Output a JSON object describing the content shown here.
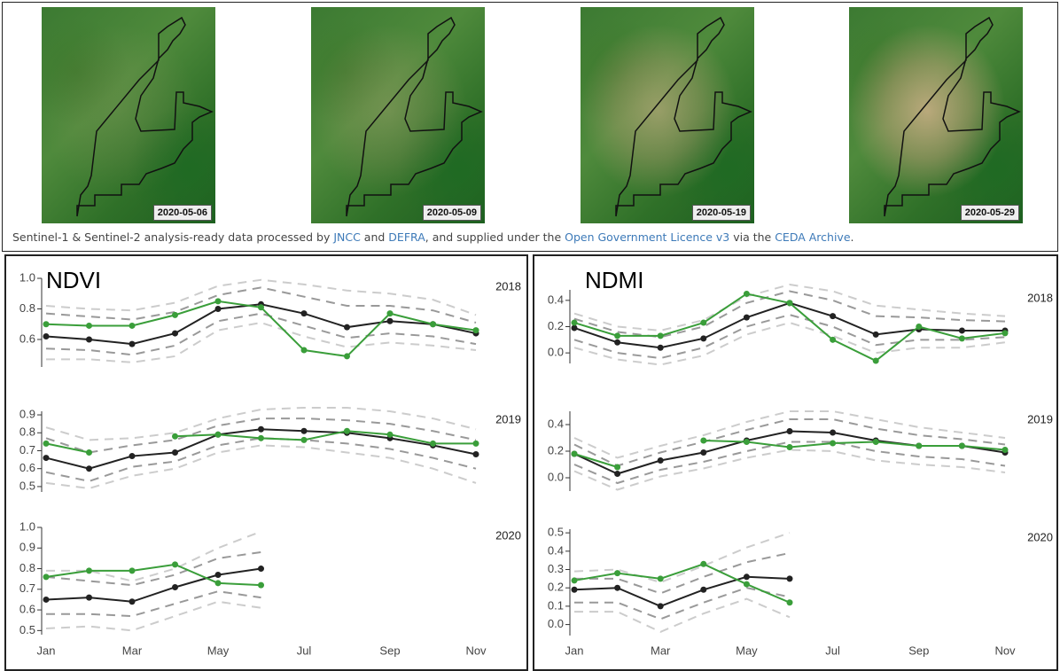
{
  "images": {
    "dates": [
      "2020-05-06",
      "2020-05-09",
      "2020-05-19",
      "2020-05-29"
    ]
  },
  "caption": [
    "Sentinel-1 & Sentinel-2 analysis-ready data processed by ",
    "JNCC",
    " and ",
    "DEFRA",
    ", and supplied under the ",
    "Open Government Licence v3",
    " via the ",
    "CEDA Archive",
    "."
  ],
  "chart_data": [
    {
      "type": "line",
      "title": "NDVI",
      "categories": [
        "Jan",
        null,
        "Mar",
        null,
        "May",
        null,
        "Jul",
        null,
        "Sep",
        null,
        "Nov"
      ],
      "subplots": [
        {
          "label": "2018",
          "ylim": [
            0.42,
            1.0
          ],
          "yticks": [
            0.6,
            0.8,
            {
              "value": 1,
              "label": "1.0"
            }
          ],
          "series": [
            {
              "color": "#cccccc",
              "dash": true,
              "values": [
                0.82,
                0.8,
                0.79,
                0.84,
                0.95,
                0.99,
                0.96,
                0.92,
                0.9,
                0.86,
                0.76
              ]
            },
            {
              "color": "#999999",
              "dash": true,
              "values": [
                0.77,
                0.75,
                0.73,
                0.78,
                0.89,
                0.94,
                0.88,
                0.82,
                0.82,
                0.79,
                0.71
              ]
            },
            {
              "color": "#999999",
              "dash": true,
              "values": [
                0.54,
                0.53,
                0.5,
                0.56,
                0.72,
                0.77,
                0.69,
                0.61,
                0.64,
                0.62,
                0.57
              ]
            },
            {
              "color": "#cccccc",
              "dash": true,
              "values": [
                0.47,
                0.47,
                0.45,
                0.49,
                0.66,
                0.71,
                0.62,
                0.55,
                0.58,
                0.56,
                0.53
              ]
            },
            {
              "color": "#222222",
              "values": [
                0.62,
                0.6,
                0.57,
                0.64,
                0.8,
                0.83,
                0.77,
                0.68,
                0.72,
                0.7,
                0.64
              ]
            },
            {
              "color": "#3a9e3a",
              "values": [
                0.7,
                0.69,
                0.69,
                0.76,
                0.85,
                0.81,
                0.53,
                0.49,
                0.77,
                0.7,
                0.66
              ]
            }
          ]
        },
        {
          "label": "2019",
          "ylim": [
            0.47,
            0.92
          ],
          "yticks": [
            0.5,
            0.6,
            0.7,
            0.8,
            0.9
          ],
          "series": [
            {
              "color": "#cccccc",
              "dash": true,
              "values": [
                0.83,
                0.76,
                0.77,
                0.8,
                0.88,
                0.93,
                0.94,
                0.94,
                0.92,
                0.88,
                0.82
              ]
            },
            {
              "color": "#999999",
              "dash": true,
              "values": [
                0.77,
                0.69,
                0.73,
                0.76,
                0.84,
                0.88,
                0.88,
                0.87,
                0.85,
                0.81,
                0.76
              ]
            },
            {
              "color": "#999999",
              "dash": true,
              "values": [
                0.58,
                0.53,
                0.61,
                0.64,
                0.73,
                0.77,
                0.76,
                0.74,
                0.71,
                0.66,
                0.6
              ]
            },
            {
              "color": "#cccccc",
              "dash": true,
              "values": [
                0.52,
                0.49,
                0.56,
                0.6,
                0.69,
                0.73,
                0.72,
                0.69,
                0.66,
                0.6,
                0.52
              ]
            },
            {
              "color": "#222222",
              "values": [
                0.66,
                0.6,
                0.67,
                0.69,
                0.79,
                0.82,
                0.81,
                0.8,
                0.77,
                0.73,
                0.68
              ]
            },
            {
              "color": "#3a9e3a",
              "values": [
                0.74,
                0.69,
                null,
                0.78,
                0.79,
                0.77,
                0.76,
                0.81,
                0.79,
                0.74,
                0.74
              ]
            }
          ]
        },
        {
          "label": "2020",
          "ylim": [
            0.48,
            1.0
          ],
          "yticks": [
            0.5,
            0.6,
            0.7,
            0.8,
            0.9,
            {
              "value": 1,
              "label": "1.0"
            }
          ],
          "series": [
            {
              "color": "#cccccc",
              "dash": true,
              "values": [
                0.79,
                0.79,
                0.74,
                0.8,
                0.9,
                0.98,
                null,
                null,
                null,
                null,
                null
              ]
            },
            {
              "color": "#999999",
              "dash": true,
              "values": [
                0.76,
                0.74,
                0.72,
                0.77,
                0.85,
                0.88,
                null,
                null,
                null,
                null,
                null
              ]
            },
            {
              "color": "#999999",
              "dash": true,
              "values": [
                0.58,
                0.58,
                0.57,
                0.63,
                0.69,
                0.66,
                null,
                null,
                null,
                null,
                null
              ]
            },
            {
              "color": "#cccccc",
              "dash": true,
              "values": [
                0.51,
                0.52,
                0.5,
                0.57,
                0.64,
                0.61,
                null,
                null,
                null,
                null,
                null
              ]
            },
            {
              "color": "#222222",
              "values": [
                0.65,
                0.66,
                0.64,
                0.71,
                0.77,
                0.8,
                null,
                null,
                null,
                null,
                null
              ]
            },
            {
              "color": "#3a9e3a",
              "values": [
                0.76,
                0.79,
                0.79,
                0.82,
                0.73,
                0.72,
                null,
                null,
                null,
                null,
                null
              ]
            }
          ]
        }
      ]
    },
    {
      "type": "line",
      "title": "NDMI",
      "categories": [
        "Jan",
        null,
        "Mar",
        null,
        "May",
        null,
        "Jul",
        null,
        "Sep",
        null,
        "Nov"
      ],
      "subplots": [
        {
          "label": "2018",
          "ylim": [
            -0.08,
            0.48
          ],
          "yticks": [
            {
              "value": 0,
              "label": "0.0"
            },
            0.2,
            0.4
          ],
          "series": [
            {
              "color": "#cccccc",
              "dash": true,
              "values": [
                0.3,
                0.2,
                0.17,
                0.25,
                0.43,
                0.52,
                0.47,
                0.36,
                0.33,
                0.3,
                0.28
              ]
            },
            {
              "color": "#999999",
              "dash": true,
              "values": [
                0.26,
                0.16,
                0.12,
                0.2,
                0.38,
                0.47,
                0.4,
                0.28,
                0.27,
                0.25,
                0.24
              ]
            },
            {
              "color": "#999999",
              "dash": true,
              "values": [
                0.1,
                0.0,
                -0.04,
                0.04,
                0.2,
                0.29,
                0.2,
                0.06,
                0.1,
                0.1,
                0.12
              ]
            },
            {
              "color": "#cccccc",
              "dash": true,
              "values": [
                0.04,
                -0.05,
                -0.09,
                -0.02,
                0.14,
                0.23,
                0.13,
                0.0,
                0.04,
                0.04,
                0.08
              ]
            },
            {
              "color": "#222222",
              "values": [
                0.19,
                0.08,
                0.04,
                0.11,
                0.27,
                0.38,
                0.28,
                0.14,
                0.18,
                0.17,
                0.17
              ]
            },
            {
              "color": "#3a9e3a",
              "values": [
                0.23,
                0.13,
                0.13,
                0.23,
                0.45,
                0.38,
                0.1,
                -0.06,
                0.2,
                0.11,
                0.15
              ]
            }
          ]
        },
        {
          "label": "2019",
          "ylim": [
            -0.1,
            0.5
          ],
          "yticks": [
            {
              "value": 0,
              "label": "0.0"
            },
            0.2,
            0.4
          ],
          "series": [
            {
              "color": "#cccccc",
              "dash": true,
              "values": [
                0.3,
                0.15,
                0.24,
                0.32,
                0.42,
                0.5,
                0.5,
                0.44,
                0.38,
                0.34,
                0.3
              ]
            },
            {
              "color": "#999999",
              "dash": true,
              "values": [
                0.25,
                0.09,
                0.19,
                0.27,
                0.36,
                0.44,
                0.44,
                0.37,
                0.32,
                0.29,
                0.25
              ]
            },
            {
              "color": "#999999",
              "dash": true,
              "values": [
                0.1,
                -0.04,
                0.06,
                0.12,
                0.2,
                0.27,
                0.27,
                0.2,
                0.16,
                0.14,
                0.09
              ]
            },
            {
              "color": "#cccccc",
              "dash": true,
              "values": [
                0.05,
                -0.09,
                0.01,
                0.07,
                0.15,
                0.21,
                0.2,
                0.13,
                0.1,
                0.08,
                0.04
              ]
            },
            {
              "color": "#222222",
              "values": [
                0.18,
                0.03,
                0.13,
                0.19,
                0.28,
                0.35,
                0.34,
                0.28,
                0.24,
                0.24,
                0.19
              ]
            },
            {
              "color": "#3a9e3a",
              "values": [
                0.18,
                0.08,
                null,
                0.28,
                0.27,
                0.23,
                0.26,
                0.27,
                0.24,
                0.24,
                0.21
              ]
            }
          ]
        },
        {
          "label": "2020",
          "ylim": [
            -0.06,
            0.52
          ],
          "yticks": [
            {
              "value": 0,
              "label": "0.0"
            },
            0.1,
            0.2,
            0.3,
            0.4,
            0.5
          ],
          "series": [
            {
              "color": "#cccccc",
              "dash": true,
              "values": [
                0.29,
                0.3,
                0.23,
                0.32,
                0.42,
                0.5,
                null,
                null,
                null,
                null,
                null
              ]
            },
            {
              "color": "#999999",
              "dash": true,
              "values": [
                0.25,
                0.25,
                0.17,
                0.26,
                0.34,
                0.39,
                null,
                null,
                null,
                null,
                null
              ]
            },
            {
              "color": "#999999",
              "dash": true,
              "values": [
                0.12,
                0.12,
                0.03,
                0.12,
                0.2,
                0.15,
                null,
                null,
                null,
                null,
                null
              ]
            },
            {
              "color": "#cccccc",
              "dash": true,
              "values": [
                0.07,
                0.07,
                -0.04,
                0.06,
                0.14,
                0.04,
                null,
                null,
                null,
                null,
                null
              ]
            },
            {
              "color": "#222222",
              "values": [
                0.19,
                0.2,
                0.1,
                0.19,
                0.26,
                0.25,
                null,
                null,
                null,
                null,
                null
              ]
            },
            {
              "color": "#3a9e3a",
              "values": [
                0.24,
                0.28,
                0.25,
                0.33,
                0.22,
                0.12,
                null,
                null,
                null,
                null,
                null
              ]
            }
          ]
        }
      ]
    }
  ]
}
